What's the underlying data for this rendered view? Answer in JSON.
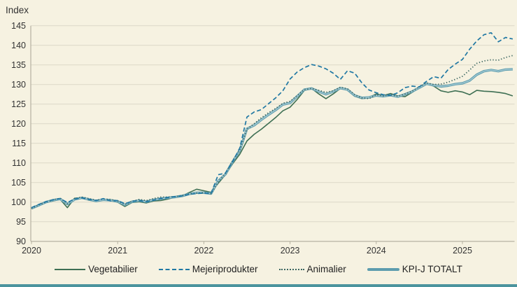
{
  "page": {
    "background_color": "#f6f2e1",
    "footer_bar_color": "#4b949e",
    "text_color": "#333333",
    "grid_color": "#dcd8c7",
    "axis_color": "#b5b1a1"
  },
  "chart_data": {
    "type": "line",
    "y_axis_title": "Index",
    "x_tick_labels": [
      "2020",
      "2021",
      "2022",
      "2023",
      "2024",
      "2025"
    ],
    "y_ticks": [
      90,
      95,
      100,
      105,
      110,
      115,
      120,
      125,
      130,
      135,
      140,
      145
    ],
    "ylim": [
      90,
      145
    ],
    "grid": "horizontal",
    "legend_position": "bottom",
    "frequency": "monthly",
    "x_start": "2020-01",
    "x_end": "2025-08",
    "series": [
      {
        "name": "Vegetabilier",
        "style": "solid",
        "width": 1.6,
        "color": "#3e6f53",
        "values": [
          98.3,
          99.2,
          99.9,
          100.3,
          100.7,
          98.6,
          101.0,
          101.1,
          100.5,
          100.2,
          100.5,
          100.4,
          100.0,
          98.9,
          99.9,
          100.1,
          99.8,
          100.3,
          100.4,
          100.8,
          101.3,
          101.6,
          102.5,
          103.3,
          102.9,
          102.5,
          104.8,
          107.0,
          109.8,
          112.2,
          115.6,
          117.3,
          118.6,
          120.1,
          121.6,
          123.3,
          124.2,
          126.2,
          128.5,
          129.0,
          127.6,
          126.4,
          127.6,
          129.0,
          128.6,
          127.0,
          126.4,
          126.7,
          127.6,
          127.2,
          127.7,
          127.1,
          126.9,
          128.0,
          129.2,
          130.3,
          129.6,
          128.4,
          128.0,
          128.4,
          128.1,
          127.4,
          128.5,
          128.3,
          128.2,
          128.0,
          127.7,
          127.1
        ]
      },
      {
        "name": "Mejeriprodukter",
        "style": "dashed",
        "width": 1.7,
        "color": "#2078a3",
        "values": [
          98.6,
          99.4,
          100.1,
          100.6,
          100.9,
          99.9,
          100.8,
          101.1,
          100.7,
          100.4,
          100.9,
          100.3,
          100.4,
          99.6,
          100.2,
          100.4,
          100.1,
          100.5,
          100.9,
          101.2,
          101.4,
          101.6,
          102.0,
          102.2,
          102.3,
          102.2,
          107.0,
          107.4,
          110.3,
          113.8,
          121.7,
          123.0,
          123.6,
          125.1,
          126.6,
          128.4,
          131.4,
          133.2,
          134.3,
          135.1,
          134.7,
          134.0,
          132.9,
          131.3,
          133.5,
          132.9,
          130.4,
          128.6,
          127.9,
          127.4,
          127.2,
          127.9,
          129.2,
          129.6,
          129.4,
          130.8,
          132.0,
          131.6,
          133.8,
          135.2,
          136.4,
          139.0,
          141.1,
          142.7,
          143.2,
          140.9,
          142.0,
          141.6
        ]
      },
      {
        "name": "Animalier",
        "style": "dotted",
        "width": 1.8,
        "color": "#3c6660",
        "values": [
          98.4,
          99.3,
          100.0,
          100.6,
          101.0,
          99.6,
          100.9,
          101.3,
          100.9,
          100.5,
          100.8,
          100.7,
          100.3,
          99.4,
          100.2,
          100.7,
          100.4,
          100.9,
          101.3,
          101.3,
          101.4,
          101.7,
          102.1,
          102.3,
          102.4,
          102.2,
          105.2,
          107.2,
          110.5,
          113.4,
          118.6,
          120.0,
          121.5,
          122.8,
          123.9,
          125.2,
          125.7,
          127.2,
          128.7,
          129.0,
          128.5,
          128.0,
          128.4,
          129.3,
          128.9,
          127.4,
          126.6,
          126.4,
          127.4,
          127.1,
          127.4,
          127.0,
          127.6,
          128.3,
          129.4,
          130.4,
          130.0,
          130.1,
          130.6,
          131.3,
          132.1,
          133.7,
          135.4,
          136.0,
          136.3,
          136.2,
          136.9,
          137.4
        ]
      },
      {
        "name": "KPI-J TOTALT",
        "style": "thick",
        "width": 3.4,
        "color": "#5d9dae",
        "color_inner": "#a9ccd5",
        "values": [
          98.4,
          99.2,
          100.0,
          100.5,
          100.8,
          99.5,
          100.7,
          101.1,
          100.7,
          100.3,
          100.6,
          100.5,
          100.2,
          99.3,
          100.1,
          100.4,
          100.1,
          100.6,
          100.9,
          101.1,
          101.3,
          101.6,
          102.1,
          102.4,
          102.4,
          102.2,
          105.4,
          107.1,
          110.3,
          113.2,
          118.7,
          119.6,
          121.0,
          122.3,
          123.5,
          124.9,
          125.3,
          127.0,
          128.7,
          129.0,
          128.2,
          127.5,
          128.2,
          129.1,
          128.7,
          127.2,
          126.6,
          126.7,
          127.2,
          127.0,
          127.3,
          126.9,
          127.5,
          128.2,
          129.2,
          130.2,
          129.8,
          129.5,
          129.7,
          130.1,
          130.3,
          131.0,
          132.5,
          133.4,
          133.7,
          133.4,
          133.8,
          133.9
        ]
      }
    ]
  }
}
